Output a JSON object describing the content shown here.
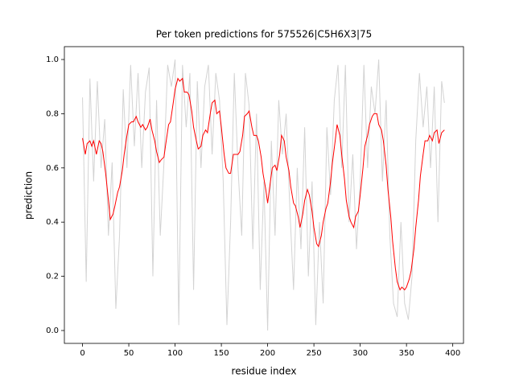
{
  "chart_data": {
    "type": "line",
    "title": "Per token predictions for 575526|C5H6X3|75",
    "x_label": "residue index",
    "y_label": "prediction",
    "xlim": [
      -19.6,
      411.6
    ],
    "ylim": [
      -0.0475,
      1.0475
    ],
    "xticks": [
      0,
      50,
      100,
      150,
      200,
      250,
      300,
      350,
      400
    ],
    "yticks": [
      {
        "value": 0,
        "label": "0.0"
      },
      0.2,
      0.4,
      0.6,
      0.8,
      {
        "value": 1,
        "label": "1.0"
      }
    ],
    "series": [
      {
        "color": "#d3d3d3",
        "x": [
          0,
          4,
          8,
          12,
          16,
          20,
          24,
          28,
          32,
          36,
          40,
          44,
          48,
          52,
          56,
          60,
          64,
          68,
          72,
          76,
          80,
          84,
          88,
          92,
          96,
          100,
          104,
          108,
          112,
          116,
          120,
          124,
          128,
          132,
          136,
          140,
          144,
          148,
          152,
          156,
          160,
          164,
          168,
          172,
          176,
          180,
          184,
          188,
          192,
          196,
          200,
          204,
          208,
          212,
          216,
          220,
          224,
          228,
          232,
          236,
          240,
          244,
          248,
          252,
          256,
          260,
          264,
          268,
          272,
          276,
          280,
          284,
          288,
          292,
          296,
          300,
          304,
          308,
          312,
          316,
          320,
          324,
          328,
          332,
          336,
          340,
          344,
          348,
          352,
          356,
          360,
          364,
          368,
          372,
          376,
          380,
          384,
          388,
          391
        ],
        "values": [
          0.86,
          0.18,
          0.93,
          0.55,
          0.92,
          0.6,
          0.78,
          0.35,
          0.62,
          0.08,
          0.35,
          0.89,
          0.6,
          0.98,
          0.68,
          0.95,
          0.6,
          0.88,
          0.97,
          0.2,
          0.85,
          0.35,
          0.62,
          0.98,
          0.9,
          1.0,
          0.02,
          0.98,
          0.75,
          0.95,
          0.15,
          0.92,
          0.6,
          0.9,
          0.98,
          0.65,
          0.95,
          0.85,
          0.55,
          0.02,
          0.4,
          0.95,
          0.6,
          0.35,
          0.95,
          0.83,
          0.3,
          0.8,
          0.15,
          0.55,
          0.0,
          0.7,
          0.35,
          0.85,
          0.65,
          0.8,
          0.45,
          0.15,
          0.6,
          0.3,
          0.75,
          0.2,
          0.55,
          0.02,
          0.4,
          0.1,
          0.75,
          0.5,
          0.85,
          0.98,
          0.6,
          0.98,
          0.4,
          0.65,
          0.3,
          0.55,
          0.98,
          0.6,
          0.9,
          0.8,
          1.0,
          0.55,
          0.85,
          0.35,
          0.1,
          0.05,
          0.4,
          0.1,
          0.04,
          0.2,
          0.7,
          0.95,
          0.75,
          0.9,
          0.6,
          0.9,
          0.4,
          0.92,
          0.84
        ]
      },
      {
        "color": "#ff0000",
        "x": [
          0,
          3,
          5,
          8,
          10,
          12,
          15,
          18,
          20,
          22,
          25,
          28,
          30,
          33,
          35,
          38,
          40,
          43,
          45,
          48,
          50,
          53,
          55,
          58,
          60,
          63,
          65,
          68,
          70,
          73,
          75,
          78,
          80,
          83,
          85,
          88,
          90,
          93,
          95,
          98,
          100,
          103,
          105,
          108,
          110,
          113,
          115,
          118,
          120,
          123,
          125,
          128,
          130,
          133,
          135,
          138,
          140,
          143,
          145,
          148,
          150,
          153,
          155,
          158,
          160,
          163,
          165,
          168,
          170,
          173,
          175,
          178,
          180,
          183,
          185,
          188,
          190,
          193,
          195,
          198,
          200,
          203,
          205,
          208,
          210,
          213,
          215,
          218,
          220,
          223,
          225,
          228,
          230,
          233,
          235,
          238,
          240,
          243,
          245,
          248,
          250,
          253,
          255,
          258,
          260,
          263,
          265,
          268,
          270,
          273,
          275,
          278,
          280,
          283,
          285,
          288,
          290,
          293,
          295,
          298,
          300,
          303,
          305,
          308,
          310,
          313,
          315,
          318,
          320,
          323,
          325,
          328,
          330,
          333,
          335,
          338,
          340,
          343,
          345,
          348,
          350,
          353,
          355,
          358,
          360,
          363,
          365,
          368,
          370,
          373,
          375,
          378,
          380,
          383,
          385,
          388,
          391
        ],
        "values": [
          0.71,
          0.65,
          0.69,
          0.7,
          0.68,
          0.7,
          0.65,
          0.7,
          0.69,
          0.66,
          0.58,
          0.48,
          0.41,
          0.43,
          0.46,
          0.51,
          0.53,
          0.59,
          0.65,
          0.72,
          0.76,
          0.77,
          0.77,
          0.79,
          0.77,
          0.75,
          0.76,
          0.74,
          0.75,
          0.78,
          0.74,
          0.7,
          0.66,
          0.62,
          0.63,
          0.64,
          0.69,
          0.76,
          0.77,
          0.84,
          0.89,
          0.93,
          0.92,
          0.93,
          0.88,
          0.88,
          0.87,
          0.81,
          0.75,
          0.7,
          0.67,
          0.68,
          0.72,
          0.74,
          0.73,
          0.8,
          0.84,
          0.85,
          0.8,
          0.81,
          0.75,
          0.65,
          0.6,
          0.58,
          0.58,
          0.65,
          0.65,
          0.65,
          0.66,
          0.72,
          0.79,
          0.8,
          0.81,
          0.75,
          0.72,
          0.72,
          0.7,
          0.64,
          0.58,
          0.52,
          0.47,
          0.55,
          0.6,
          0.61,
          0.59,
          0.65,
          0.72,
          0.7,
          0.64,
          0.59,
          0.53,
          0.47,
          0.46,
          0.42,
          0.38,
          0.43,
          0.48,
          0.52,
          0.5,
          0.44,
          0.38,
          0.32,
          0.31,
          0.35,
          0.4,
          0.45,
          0.47,
          0.55,
          0.62,
          0.7,
          0.76,
          0.72,
          0.65,
          0.56,
          0.48,
          0.42,
          0.4,
          0.38,
          0.42,
          0.44,
          0.5,
          0.6,
          0.68,
          0.72,
          0.76,
          0.79,
          0.8,
          0.8,
          0.76,
          0.74,
          0.7,
          0.61,
          0.52,
          0.42,
          0.33,
          0.23,
          0.18,
          0.15,
          0.16,
          0.15,
          0.16,
          0.19,
          0.22,
          0.3,
          0.38,
          0.48,
          0.57,
          0.65,
          0.7,
          0.7,
          0.72,
          0.7,
          0.73,
          0.74,
          0.69,
          0.73,
          0.74
        ]
      }
    ]
  }
}
